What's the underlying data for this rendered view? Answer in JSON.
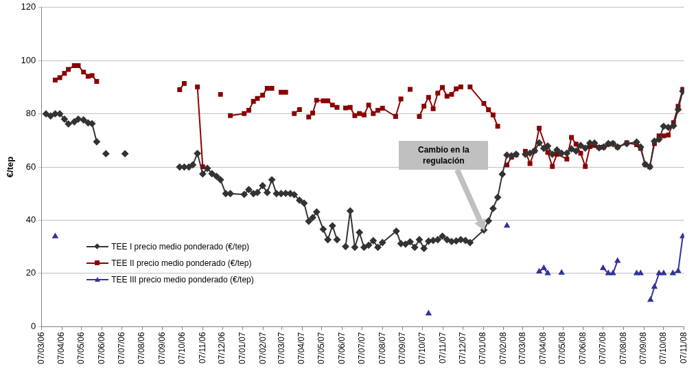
{
  "chart_data": {
    "type": "line",
    "ylabel": "€/tep",
    "ylim": [
      0,
      120
    ],
    "yticks": [
      0,
      20,
      40,
      60,
      80,
      100,
      120
    ],
    "xlim": [
      "2006-03-07",
      "2008-11-07"
    ],
    "xticks": [
      {
        "value": "2006-03-07",
        "label": "07/03/06"
      },
      {
        "value": "2006-04-07",
        "label": "07/04/06"
      },
      {
        "value": "2006-05-07",
        "label": "07/05/06"
      },
      {
        "value": "2006-06-07",
        "label": "07/06/06"
      },
      {
        "value": "2006-07-07",
        "label": "07/07/06"
      },
      {
        "value": "2006-08-07",
        "label": "07/08/06"
      },
      {
        "value": "2006-09-07",
        "label": "07/09/06"
      },
      {
        "value": "2006-10-07",
        "label": "07/10/06"
      },
      {
        "value": "2006-11-07",
        "label": "07/11/06"
      },
      {
        "value": "2006-12-07",
        "label": "07/12/06"
      },
      {
        "value": "2007-01-07",
        "label": "07/01/07"
      },
      {
        "value": "2007-02-07",
        "label": "07/02/07"
      },
      {
        "value": "2007-03-07",
        "label": "07/03/07"
      },
      {
        "value": "2007-04-07",
        "label": "07/04/07"
      },
      {
        "value": "2007-05-07",
        "label": "07/05/07"
      },
      {
        "value": "2007-06-07",
        "label": "07/06/07"
      },
      {
        "value": "2007-07-07",
        "label": "07/07/07"
      },
      {
        "value": "2007-08-07",
        "label": "07/08/07"
      },
      {
        "value": "2007-09-07",
        "label": "07/09/07"
      },
      {
        "value": "2007-10-07",
        "label": "07/10/07"
      },
      {
        "value": "2007-11-07",
        "label": "07/11/07"
      },
      {
        "value": "2007-12-07",
        "label": "07/12/07"
      },
      {
        "value": "2008-01-07",
        "label": "07/01/08"
      },
      {
        "value": "2008-02-07",
        "label": "07/02/08"
      },
      {
        "value": "2008-03-07",
        "label": "07/03/08"
      },
      {
        "value": "2008-04-07",
        "label": "07/04/08"
      },
      {
        "value": "2008-05-07",
        "label": "07/05/08"
      },
      {
        "value": "2008-06-07",
        "label": "07/06/08"
      },
      {
        "value": "2008-07-07",
        "label": "07/07/08"
      },
      {
        "value": "2008-08-07",
        "label": "07/08/08"
      },
      {
        "value": "2008-09-07",
        "label": "07/09/08"
      },
      {
        "value": "2008-10-07",
        "label": "07/10/08"
      },
      {
        "value": "2008-11-07",
        "label": "07/11/08"
      }
    ],
    "grid": "y",
    "legend": "bottom left",
    "line_style": "solid",
    "annotations": [
      "Cambio en la regulación"
    ],
    "series": [
      {
        "name": "TEE I precio medio ponderado (€/tep)",
        "color": "#333333",
        "marker": "diamond",
        "x": [
          "2006-03-14",
          "2006-03-21",
          "2006-03-28",
          "2006-04-04",
          "2006-04-11",
          "2006-04-17",
          "2006-04-26",
          "2006-05-02",
          "2006-05-10",
          "2006-05-17",
          "2006-05-23",
          "2006-05-30",
          "2006-06-06",
          "2006-06-13",
          "2006-06-27",
          "2006-07-12",
          "2006-08-01",
          "2006-10-03",
          "2006-10-10",
          "2006-10-17",
          "2006-10-23",
          "2006-10-30",
          "2006-11-07",
          "2006-11-14",
          "2006-11-21",
          "2006-11-28",
          "2006-12-04",
          "2006-12-12",
          "2006-12-19",
          "2007-01-09",
          "2007-01-16",
          "2007-01-23",
          "2007-01-29",
          "2007-02-06",
          "2007-02-13",
          "2007-02-20",
          "2007-02-27",
          "2007-03-06",
          "2007-03-13",
          "2007-03-20",
          "2007-03-26",
          "2007-04-03",
          "2007-04-10",
          "2007-04-17",
          "2007-04-23",
          "2007-04-29",
          "2007-05-09",
          "2007-05-16",
          "2007-05-23",
          "2007-05-30",
          "2007-06-05",
          "2007-06-12",
          "2007-06-19",
          "2007-06-26",
          "2007-07-03",
          "2007-07-10",
          "2007-07-17",
          "2007-07-24",
          "2007-07-31",
          "2007-08-07",
          "2007-08-28",
          "2007-09-04",
          "2007-09-11",
          "2007-09-18",
          "2007-09-25",
          "2007-10-02",
          "2007-10-09",
          "2007-10-16",
          "2007-10-23",
          "2007-10-30",
          "2007-11-06",
          "2007-11-13",
          "2007-11-20",
          "2007-11-27",
          "2007-12-04",
          "2007-12-11",
          "2007-12-18",
          "2008-01-08",
          "2008-01-15",
          "2008-01-22",
          "2008-01-29",
          "2008-02-05",
          "2008-02-12",
          "2008-02-19",
          "2008-02-26",
          "2008-03-04",
          "2008-03-11",
          "2008-03-18",
          "2008-03-25",
          "2008-04-01",
          "2008-04-08",
          "2008-04-14",
          "2008-04-21",
          "2008-04-28",
          "2008-05-05",
          "2008-05-13",
          "2008-05-20",
          "2008-05-27",
          "2008-06-03",
          "2008-06-10",
          "2008-06-17",
          "2008-06-24",
          "2008-07-01",
          "2008-07-08",
          "2008-07-15",
          "2008-07-22",
          "2008-07-29",
          "2008-08-12",
          "2008-08-27",
          "2008-09-02",
          "2008-09-09",
          "2008-09-16",
          "2008-09-23",
          "2008-09-30",
          "2008-10-07",
          "2008-10-14",
          "2008-10-22",
          "2008-10-29",
          "2008-11-05"
        ],
        "values": [
          80,
          79.2,
          80,
          80,
          78,
          76.2,
          77,
          78,
          77.7,
          76.6,
          76.3,
          69.5,
          null,
          65,
          null,
          65,
          null,
          60,
          60,
          60,
          60.8,
          65.1,
          57.4,
          59.5,
          57.5,
          56.5,
          55.2,
          50,
          50,
          49.7,
          51.5,
          50,
          50.4,
          53,
          50.4,
          55.2,
          50,
          50,
          50.1,
          50,
          49.6,
          47.5,
          46.4,
          39.6,
          41,
          43.1,
          36.6,
          32.7,
          37.9,
          32.7,
          null,
          30.1,
          43.5,
          29.8,
          35.4,
          29.8,
          30.6,
          32.3,
          29.8,
          31.6,
          35.9,
          31.2,
          31,
          31.9,
          29.8,
          32.7,
          29.4,
          32.1,
          32.4,
          32.7,
          34,
          32.7,
          32,
          32.2,
          32.7,
          32.4,
          31.6,
          36.3,
          39.7,
          44.4,
          48.6,
          57.3,
          64.5,
          64.2,
          64.8,
          null,
          64.8,
          65.2,
          66.1,
          69.1,
          67,
          67.9,
          64.8,
          66.4,
          65.2,
          65.2,
          66.8,
          66,
          68.1,
          67.1,
          69,
          69,
          67.2,
          67.5,
          68.8,
          68.8,
          67.5,
          68.8,
          69.4,
          67.5,
          61,
          60.1,
          69.7,
          70.4,
          75.3,
          74.9,
          75.5,
          81.6,
          88.5
        ]
      },
      {
        "name": "TEE II precio medio ponderado (€/tep)",
        "color": "#8b0000",
        "marker": "square",
        "x": [
          "2006-03-28",
          "2006-04-04",
          "2006-04-11",
          "2006-04-17",
          "2006-04-26",
          "2006-05-02",
          "2006-05-10",
          "2006-05-17",
          "2006-05-23",
          "2006-05-30",
          "2006-08-01",
          "2006-10-03",
          "2006-10-10",
          "2006-10-20",
          "2006-10-30",
          "2006-11-07",
          "2006-11-20",
          "2006-12-04",
          "2006-12-12",
          "2006-12-19",
          "2007-01-09",
          "2007-01-16",
          "2007-01-23",
          "2007-01-29",
          "2007-02-06",
          "2007-02-13",
          "2007-02-20",
          "2007-02-27",
          "2007-03-06",
          "2007-03-13",
          "2007-03-20",
          "2007-03-26",
          "2007-04-03",
          "2007-04-10",
          "2007-04-17",
          "2007-04-23",
          "2007-04-29",
          "2007-05-09",
          "2007-05-16",
          "2007-05-23",
          "2007-05-30",
          "2007-06-05",
          "2007-06-12",
          "2007-06-19",
          "2007-06-26",
          "2007-07-03",
          "2007-07-10",
          "2007-07-17",
          "2007-07-24",
          "2007-07-31",
          "2007-08-07",
          "2007-08-27",
          "2007-09-04",
          "2007-09-11",
          "2007-09-18",
          "2007-09-25",
          "2007-10-02",
          "2007-10-09",
          "2007-10-16",
          "2007-10-23",
          "2007-10-30",
          "2007-11-06",
          "2007-11-13",
          "2007-11-20",
          "2007-11-27",
          "2007-12-04",
          "2007-12-11",
          "2007-12-18",
          "2008-01-08",
          "2008-01-15",
          "2008-01-22",
          "2008-01-29",
          "2008-02-05",
          "2008-02-12",
          "2008-02-19",
          "2008-02-26",
          "2008-03-04",
          "2008-03-11",
          "2008-03-18",
          "2008-03-25",
          "2008-04-01",
          "2008-04-14",
          "2008-04-21",
          "2008-04-28",
          "2008-05-13",
          "2008-05-20",
          "2008-05-27",
          "2008-06-03",
          "2008-06-10",
          "2008-06-17",
          "2008-06-24",
          "2008-07-01",
          "2008-07-08",
          "2008-07-15",
          "2008-07-22",
          "2008-07-29",
          "2008-08-12",
          "2008-08-27",
          "2008-09-02",
          "2008-09-09",
          "2008-09-16",
          "2008-09-23",
          "2008-09-30",
          "2008-10-07",
          "2008-10-14",
          "2008-10-22",
          "2008-10-29",
          "2008-11-05"
        ],
        "values": [
          92.7,
          93.6,
          95.2,
          96.7,
          98.1,
          98.1,
          95.7,
          94.1,
          94.4,
          92.2,
          null,
          89.1,
          91.4,
          null,
          90.1,
          60.1,
          null,
          87.3,
          null,
          79.3,
          80.1,
          81.3,
          84.7,
          85.8,
          87,
          89.6,
          89.6,
          null,
          88.1,
          88.1,
          null,
          80.1,
          81.6,
          null,
          78.8,
          80.3,
          85.1,
          84.9,
          84.9,
          83.3,
          82.4,
          null,
          82.2,
          82.4,
          79.3,
          80.1,
          79.6,
          83.3,
          80.1,
          81.3,
          82.1,
          79,
          85.6,
          null,
          89.2,
          null,
          79,
          82.9,
          86.2,
          81.9,
          87.8,
          89.9,
          86.6,
          87.3,
          89.4,
          90.1,
          null,
          90.1,
          83.9,
          81.5,
          79.6,
          75.3,
          null,
          60.8,
          63.7,
          64.6,
          null,
          65.9,
          61.3,
          66.1,
          74.6,
          65.5,
          60.2,
          64.8,
          63,
          71.1,
          68.6,
          65.2,
          60.2,
          67.7,
          68.1,
          67.4,
          67.5,
          68.5,
          68.8,
          67.5,
          69.1,
          68.4,
          67,
          61,
          60.1,
          68.8,
          71.7,
          71.7,
          72,
          76.7,
          82.8,
          89.2
        ]
      },
      {
        "name": "TEE III precio medio ponderado (€/tep)",
        "color": "#333399",
        "marker": "triangle",
        "x": [
          "2006-03-28",
          "2006-04-10",
          "2007-10-16",
          "2007-10-30",
          "2008-02-12",
          "2008-03-01",
          "2008-04-01",
          "2008-04-08",
          "2008-04-14",
          "2008-04-25",
          "2008-05-05",
          "2008-06-01",
          "2008-07-07",
          "2008-07-15",
          "2008-07-22",
          "2008-07-29",
          "2008-08-10",
          "2008-08-27",
          "2008-09-02",
          "2008-09-10",
          "2008-09-17",
          "2008-09-23",
          "2008-09-30",
          "2008-10-07",
          "2008-10-14",
          "2008-10-21",
          "2008-10-29",
          "2008-11-05"
        ],
        "values": [
          33.9,
          null,
          4.9,
          null,
          37.9,
          null,
          20.7,
          22,
          20,
          null,
          20.2,
          null,
          22,
          20,
          20,
          24.7,
          null,
          20,
          20,
          null,
          10,
          14.9,
          20,
          20,
          null,
          20,
          20.9,
          33.9
        ]
      }
    ]
  }
}
